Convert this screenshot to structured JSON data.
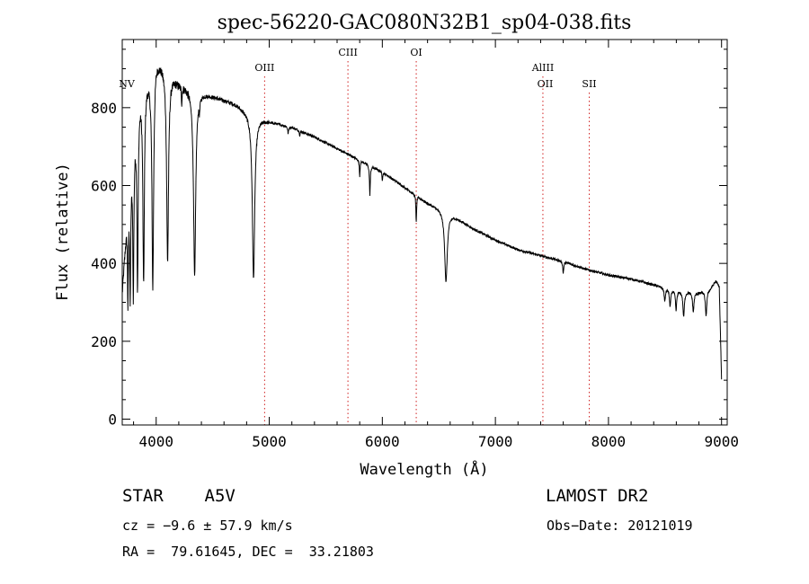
{
  "chart_data": {
    "type": "line",
    "title": "spec-56220-GAC080N32B1_sp04-038.fits",
    "xlabel": "Wavelength (Å)",
    "ylabel": "Flux (relative)",
    "xlim": [
      3700,
      9050
    ],
    "ylim": [
      -15,
      975
    ],
    "x_ticks": [
      4000,
      5000,
      6000,
      7000,
      8000,
      9000
    ],
    "y_ticks": [
      0,
      200,
      400,
      600,
      800
    ],
    "grid": false,
    "legend": "none",
    "series": [
      {
        "color": "#000000",
        "continuum": {
          "x": [
            3700,
            3750,
            3800,
            3850,
            3900,
            3950,
            4000,
            4050,
            4100,
            4150,
            4200,
            4300,
            4400,
            4500,
            4600,
            4700,
            4800,
            4900,
            5000,
            5200,
            5400,
            5600,
            5800,
            6000,
            6200,
            6400,
            6600,
            6800,
            7000,
            7200,
            7400,
            7600,
            7800,
            8000,
            8200,
            8400,
            8600,
            8800,
            8900,
            8950,
            8980,
            9000
          ],
          "y": [
            330,
            560,
            720,
            830,
            870,
            890,
            930,
            915,
            900,
            880,
            865,
            850,
            840,
            830,
            820,
            810,
            790,
            775,
            765,
            750,
            725,
            695,
            665,
            635,
            595,
            555,
            528,
            490,
            460,
            435,
            420,
            405,
            385,
            370,
            360,
            345,
            330,
            325,
            335,
            355,
            340,
            100
          ]
        },
        "absorption_lines": [
          {
            "center": 4861,
            "depth": 420,
            "width": 20
          },
          {
            "center": 4340,
            "depth": 480,
            "width": 18
          },
          {
            "center": 4101,
            "depth": 490,
            "width": 16
          },
          {
            "center": 3970,
            "depth": 560,
            "width": 14
          },
          {
            "center": 3889,
            "depth": 500,
            "width": 12
          },
          {
            "center": 3835,
            "depth": 450,
            "width": 10
          },
          {
            "center": 3798,
            "depth": 380,
            "width": 9
          },
          {
            "center": 3770,
            "depth": 300,
            "width": 8
          },
          {
            "center": 3750,
            "depth": 250,
            "width": 7
          },
          {
            "center": 4226,
            "depth": 40,
            "width": 6
          },
          {
            "center": 4383,
            "depth": 30,
            "width": 6
          },
          {
            "center": 5167,
            "depth": 18,
            "width": 8
          },
          {
            "center": 5270,
            "depth": 12,
            "width": 6
          },
          {
            "center": 5890,
            "depth": 75,
            "width": 7
          },
          {
            "center": 5800,
            "depth": 40,
            "width": 6
          },
          {
            "center": 6000,
            "depth": 20,
            "width": 6
          },
          {
            "center": 6300,
            "depth": 70,
            "width": 6
          },
          {
            "center": 6563,
            "depth": 180,
            "width": 22
          },
          {
            "center": 7600,
            "depth": 30,
            "width": 8
          },
          {
            "center": 8498,
            "depth": 35,
            "width": 10
          },
          {
            "center": 8545,
            "depth": 45,
            "width": 10
          },
          {
            "center": 8598,
            "depth": 50,
            "width": 10
          },
          {
            "center": 8665,
            "depth": 65,
            "width": 12
          },
          {
            "center": 8750,
            "depth": 50,
            "width": 12
          },
          {
            "center": 8863,
            "depth": 65,
            "width": 12
          }
        ]
      }
    ],
    "annotations": [
      {
        "label": "NV",
        "wavelength": 3740,
        "row": 2,
        "marker": false
      },
      {
        "label": "OIII",
        "wavelength": 4959,
        "row": 1,
        "marker": true
      },
      {
        "label": "CIII",
        "wavelength": 5696,
        "row": 0,
        "marker": true
      },
      {
        "label": "OI",
        "wavelength": 6300,
        "row": 0,
        "marker": true
      },
      {
        "label": "AlIII",
        "wavelength": 7420,
        "row": 1,
        "marker": true
      },
      {
        "label": "OII",
        "wavelength": 7440,
        "row": 2,
        "marker": false
      },
      {
        "label": "SII",
        "wavelength": 7830,
        "row": 2,
        "marker": true
      }
    ],
    "marker_color": "#d02020"
  },
  "info": {
    "class_text": "STAR    A5V",
    "cz_text": "cz = −9.6 ± 57.9 km/s",
    "radec_text": "RA =  79.61645, DEC =  33.21803",
    "survey_text": "LAMOST DR2",
    "obsdate_text": "Obs−Date: 20121019"
  }
}
